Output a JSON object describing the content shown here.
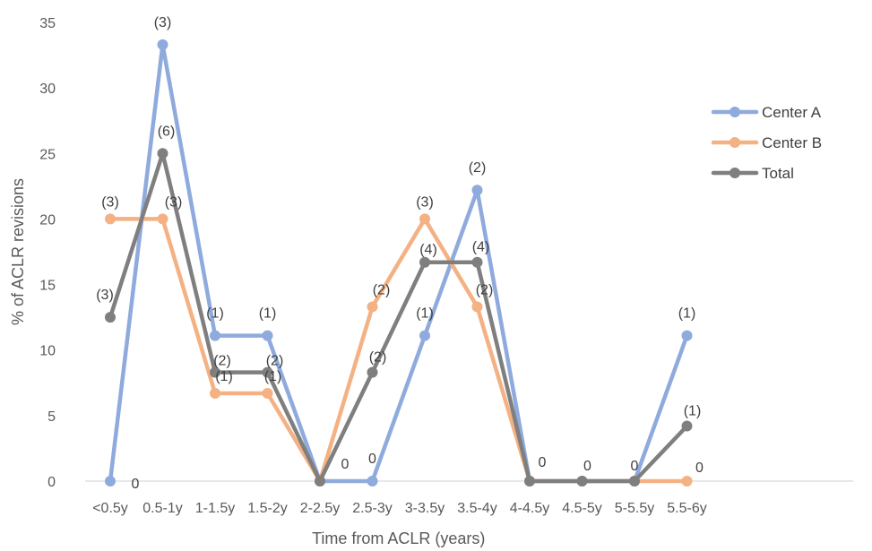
{
  "chart_data": {
    "type": "line",
    "xlabel": "Time from ACLR (years)",
    "ylabel": "% of ACLR revisions",
    "ylim": [
      0,
      35
    ],
    "yticks": [
      0,
      5,
      10,
      15,
      20,
      25,
      30,
      35
    ],
    "grid": false,
    "legend_position": "right",
    "categories": [
      "<0.5y",
      "0.5-1y",
      "1-1.5y",
      "1.5-2y",
      "2-2.5y",
      "2.5-3y",
      "3-3.5y",
      "3.5-4y",
      "4-4.5y",
      "4.5-5y",
      "5-5.5y",
      "5.5-6y"
    ],
    "series": [
      {
        "name": "Center A",
        "color": "#8faadc",
        "values": [
          0,
          33.3,
          11.1,
          11.1,
          0,
          0,
          11.1,
          22.2,
          0,
          0,
          0,
          11.1
        ],
        "labels": [
          "0",
          "(3)",
          "(1)",
          "(1)",
          "0",
          "0",
          "(1)",
          "(2)",
          "0",
          "0",
          "0",
          "(1)"
        ]
      },
      {
        "name": "Center B",
        "color": "#f4b183",
        "values": [
          20,
          20,
          6.7,
          6.7,
          0,
          13.3,
          20,
          13.3,
          0,
          0,
          0,
          0
        ],
        "labels": [
          "(3)",
          "(3)",
          "(1)",
          "(1)",
          "",
          "(2)",
          "(3)",
          "(2)",
          "",
          "",
          "",
          "0"
        ]
      },
      {
        "name": "Total",
        "color": "#7f7f7f",
        "values": [
          12.5,
          25,
          8.3,
          8.3,
          0,
          8.3,
          16.7,
          16.7,
          0,
          0,
          0,
          4.2
        ],
        "labels": [
          "(3)",
          "(6)",
          "(2)",
          "(2)",
          "",
          "(2)",
          "(4)",
          "(4)",
          "",
          "",
          "",
          "(1)"
        ]
      }
    ]
  }
}
